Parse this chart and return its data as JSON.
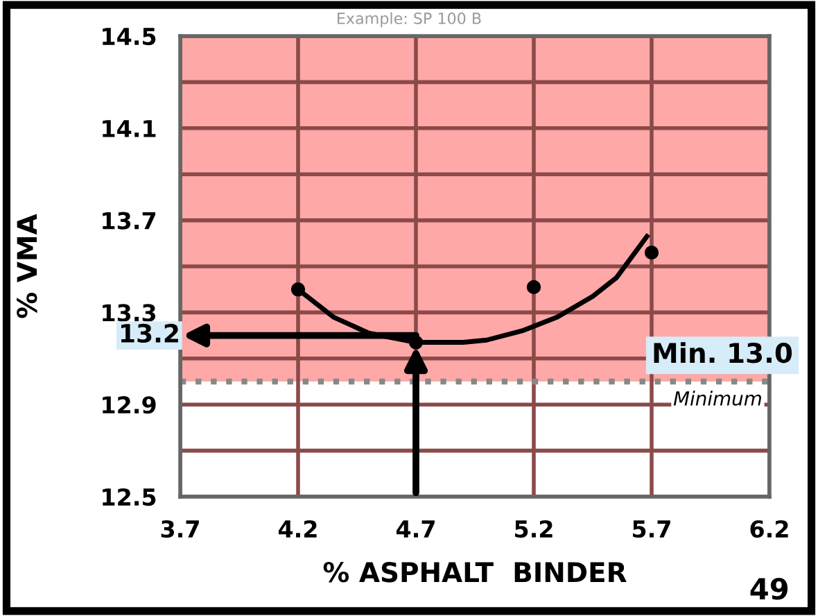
{
  "chart_data": {
    "type": "scatter",
    "xlabel": "% ASPHALT  BINDER",
    "ylabel": "% VMA",
    "xlim": [
      3.7,
      6.2
    ],
    "xticks": [
      3.7,
      4.2,
      4.7,
      5.2,
      5.7,
      6.2
    ],
    "ylim": [
      12.5,
      14.5
    ],
    "yticks": [
      12.5,
      {
        "value": 12.7,
        "label": null
      },
      12.9,
      {
        "value": 13.1,
        "label": null
      },
      13.3,
      {
        "value": 13.5,
        "label": null
      },
      13.7,
      {
        "value": 13.9,
        "label": null
      },
      14.1,
      {
        "value": 14.3,
        "label": null
      },
      14.5
    ],
    "grid": true,
    "series": [
      {
        "color": "#000000",
        "marker": "circle",
        "x": [
          4.2,
          4.7,
          5.2,
          5.7
        ],
        "values": [
          13.4,
          13.17,
          13.41,
          13.56
        ]
      },
      {
        "type": "line",
        "color": "#000000",
        "line_style": "solid",
        "x": [
          4.2,
          4.35,
          4.5,
          4.7,
          4.9,
          5.0,
          5.15,
          5.3,
          5.45,
          5.55,
          5.68
        ],
        "values": [
          13.4,
          13.28,
          13.21,
          13.17,
          13.17,
          13.18,
          13.22,
          13.28,
          13.37,
          13.45,
          13.63
        ]
      }
    ],
    "bands": [
      {
        "axis": "y",
        "from": 13.0,
        "to": 14.5,
        "color": "#ffa8a8"
      }
    ],
    "ref_lines": [
      {
        "axis": "y",
        "value": 13.0,
        "label": "Minimum",
        "line_style": "dotted",
        "color": "#888888"
      }
    ],
    "annotations": [
      {
        "text": "13.2",
        "x": 4.7,
        "y": 13.2
      },
      "Min. 13.0",
      "Example: SP 100 B",
      "49"
    ]
  }
}
